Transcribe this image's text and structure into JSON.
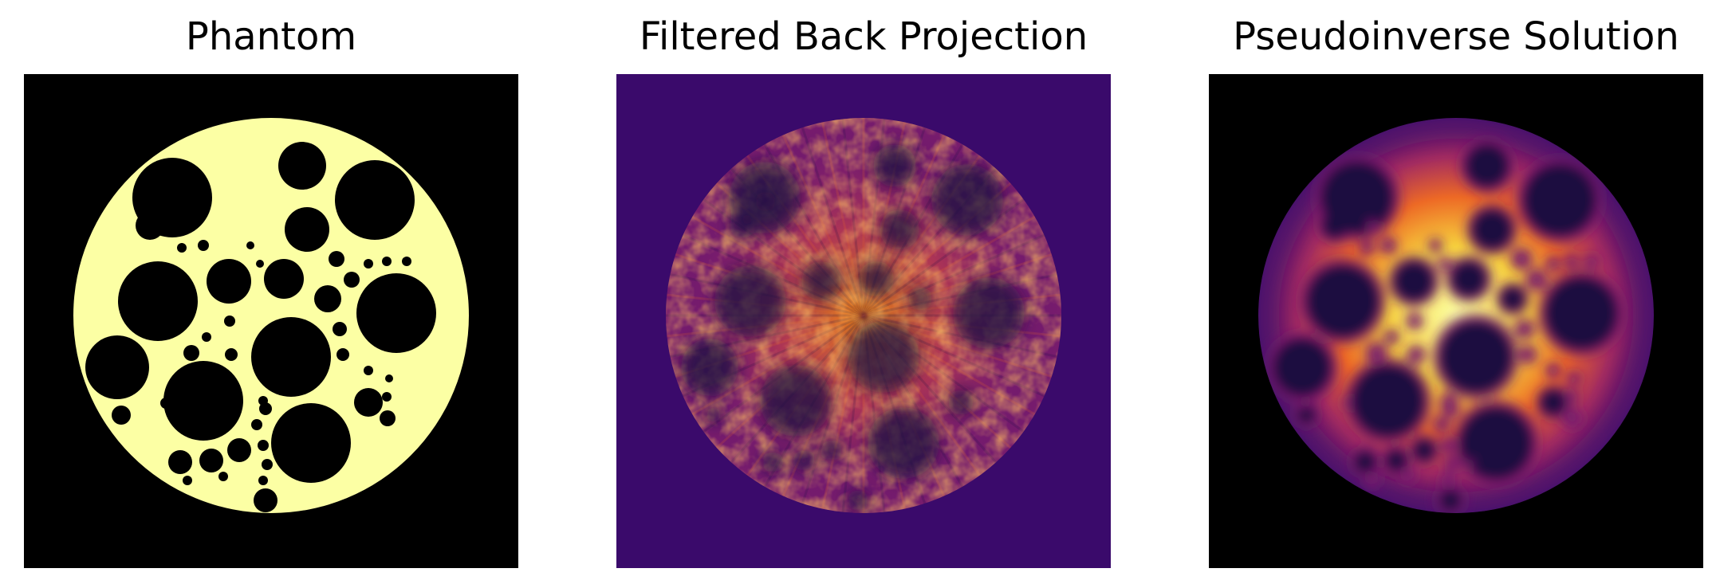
{
  "panels": [
    {
      "title": "Phantom",
      "background": "#000000",
      "disk_color": "#fcffa4",
      "hole_color": "#000000"
    },
    {
      "title": "Filtered Back Projection",
      "background": "#3a0a6b",
      "colormap": [
        "#000004",
        "#1b0c41",
        "#4a0c6b",
        "#781c6d",
        "#a52c60",
        "#cf4446",
        "#ed6925",
        "#fb9b06",
        "#f7d13d",
        "#fcffa4"
      ]
    },
    {
      "title": "Pseudoinverse Solution",
      "background": "#000000",
      "colormap": [
        "#000004",
        "#1b0c41",
        "#4a0c6b",
        "#781c6d",
        "#a52c60",
        "#cf4446",
        "#ed6925",
        "#fb9b06",
        "#f7d13d",
        "#fcffa4"
      ]
    }
  ]
}
